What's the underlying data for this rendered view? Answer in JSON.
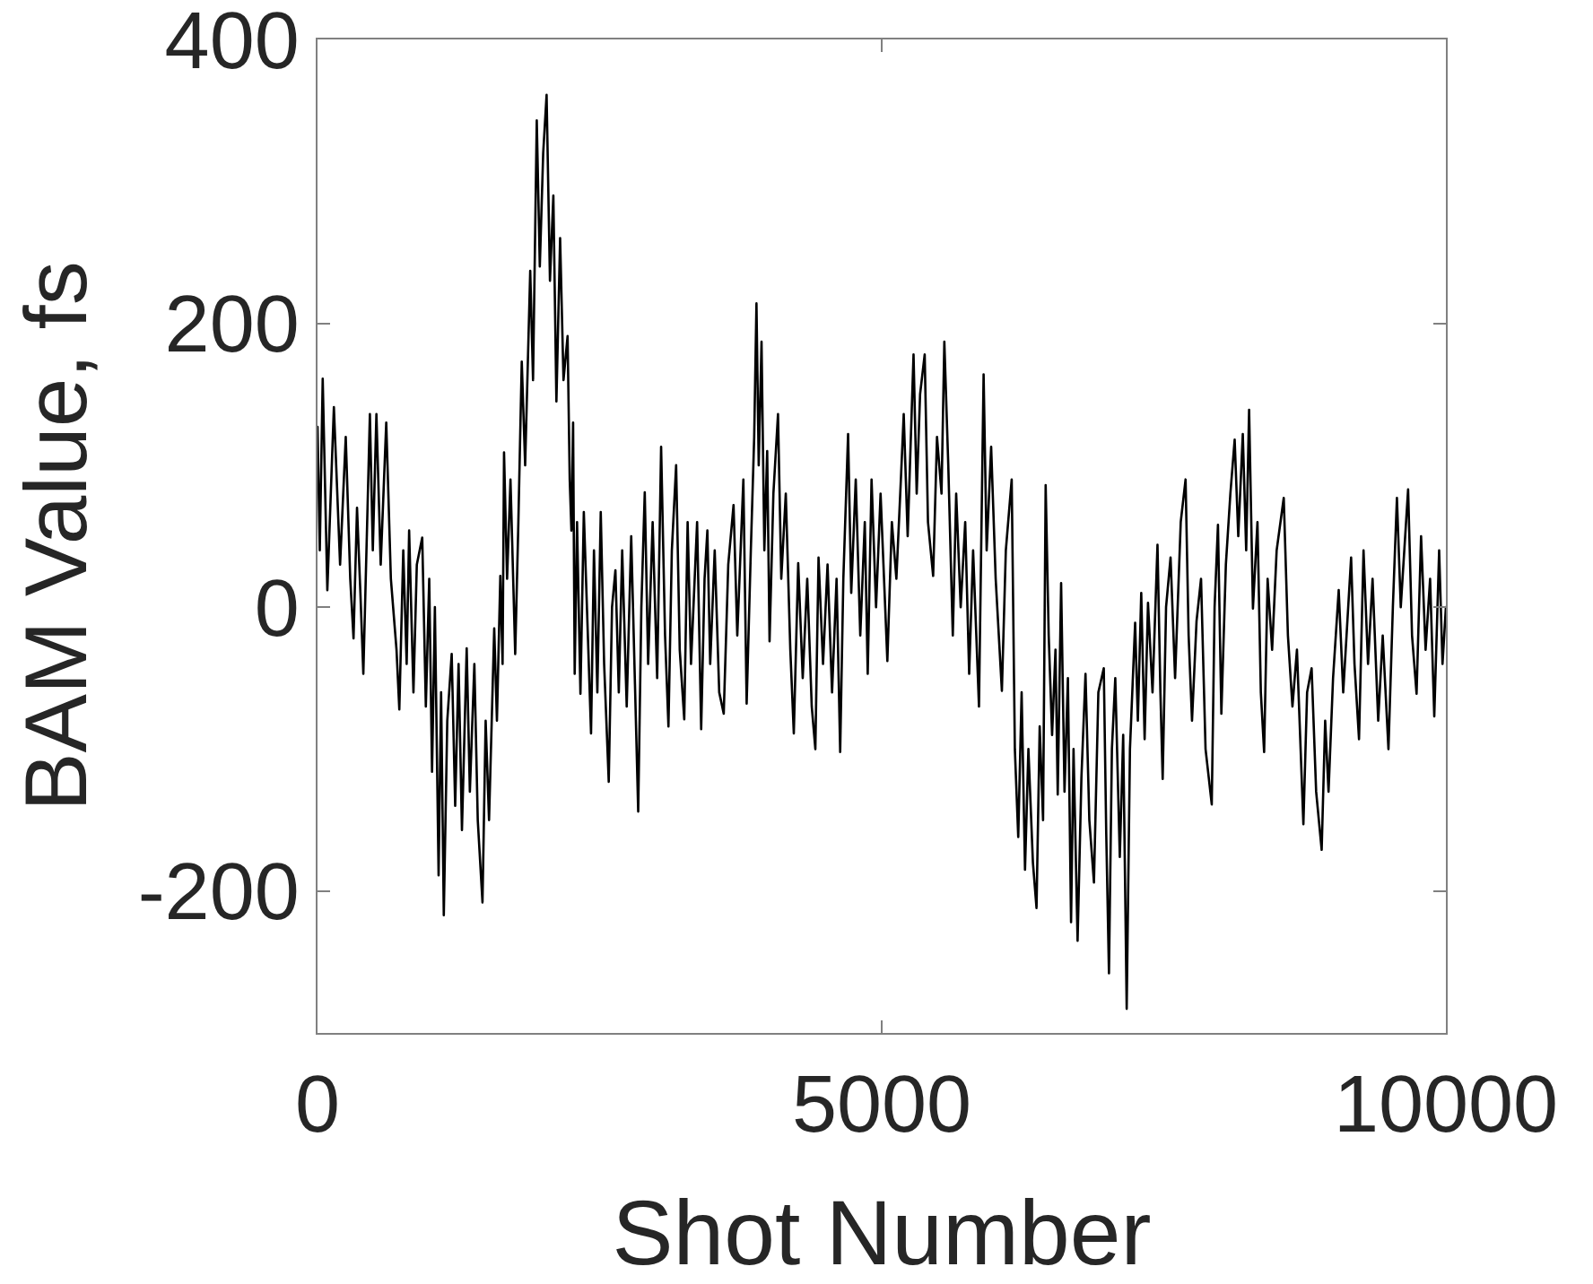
{
  "chart_data": {
    "type": "line",
    "xlabel": "Shot Number",
    "ylabel": "BAM Value, fs",
    "x": [
      0,
      20,
      46,
      87,
      145,
      200,
      250,
      290,
      319,
      350,
      380,
      406,
      440,
      464,
      490,
      522,
      560,
      609,
      650,
      700,
      725,
      760,
      790,
      812,
      850,
      880,
      928,
      960,
      990,
      1015,
      1040,
      1073,
      1095,
      1119,
      1150,
      1189,
      1220,
      1250,
      1280,
      1322,
      1350,
      1390,
      1420,
      1462,
      1490,
      1520,
      1566,
      1590,
      1620,
      1640,
      1653,
      1680,
      1710,
      1752,
      1780,
      1810,
      1840,
      1885,
      1910,
      1943,
      1970,
      2000,
      2030,
      2060,
      2090,
      2117,
      2150,
      2180,
      2216,
      2235,
      2250,
      2265,
      2279,
      2300,
      2330,
      2360,
      2400,
      2424,
      2450,
      2480,
      2510,
      2540,
      2581,
      2610,
      2640,
      2670,
      2700,
      2740,
      2780,
      2842,
      2870,
      2900,
      2930,
      2970,
      3010,
      3045,
      3080,
      3110,
      3140,
      3178,
      3210,
      3250,
      3280,
      3310,
      3364,
      3400,
      3430,
      3455,
      3480,
      3520,
      3560,
      3600,
      3640,
      3687,
      3720,
      3774,
      3803,
      3840,
      3870,
      3890,
      3910,
      3935,
      3960,
      3985,
      4006,
      4040,
      4081,
      4110,
      4150,
      4190,
      4221,
      4260,
      4300,
      4340,
      4380,
      4412,
      4440,
      4480,
      4520,
      4560,
      4600,
      4632,
      4660,
      4702,
      4730,
      4770,
      4810,
      4850,
      4876,
      4910,
      4950,
      4990,
      5050,
      5090,
      5130,
      5170,
      5195,
      5230,
      5282,
      5310,
      5340,
      5381,
      5410,
      5456,
      5490,
      5530,
      5555,
      5590,
      5630,
      5660,
      5700,
      5740,
      5775,
      5810,
      5862,
      5903,
      5930,
      5970,
      6010,
      6065,
      6100,
      6152,
      6180,
      6210,
      6240,
      6270,
      6300,
      6340,
      6372,
      6400,
      6430,
      6453,
      6480,
      6510,
      6540,
      6560,
      6590,
      6620,
      6650,
      6678,
      6700,
      6736,
      6770,
      6806,
      6840,
      6881,
      6920,
      6968,
      6990,
      7014,
      7040,
      7070,
      7110,
      7140,
      7171,
      7200,
      7246,
      7270,
      7300,
      7330,
      7360,
      7400,
      7444,
      7470,
      7490,
      7520,
      7560,
      7600,
      7650,
      7693,
      7720,
      7750,
      7790,
      7830,
      7870,
      7925,
      7950,
      7980,
      8010,
      8050,
      8090,
      8128,
      8160,
      8200,
      8230,
      8256,
      8290,
      8330,
      8360,
      8389,
      8420,
      8460,
      8500,
      8563,
      8600,
      8640,
      8680,
      8737,
      8770,
      8810,
      8850,
      8899,
      8930,
      8960,
      9000,
      9050,
      9090,
      9160,
      9190,
      9230,
      9270,
      9310,
      9350,
      9400,
      9440,
      9491,
      9530,
      9566,
      9600,
      9665,
      9700,
      9740,
      9780,
      9820,
      9860,
      9897,
      9940,
      9970,
      10000
    ],
    "series": [
      {
        "color": "#000000",
        "values": [
          127,
          40,
          161,
          12,
          141,
          30,
          120,
          20,
          -22,
          70,
          10,
          -47,
          60,
          136,
          40,
          136,
          30,
          130,
          20,
          -30,
          -72,
          40,
          -40,
          54,
          -60,
          30,
          49,
          -70,
          20,
          -116,
          0,
          -189,
          -60,
          -217,
          -80,
          -33,
          -140,
          -40,
          -157,
          -29,
          -130,
          -40,
          -150,
          -208,
          -80,
          -150,
          -15,
          -80,
          22,
          -40,
          109,
          20,
          90,
          -33,
          60,
          173,
          100,
          237,
          160,
          343,
          240,
          320,
          361,
          230,
          290,
          145,
          260,
          160,
          191,
          90,
          54,
          130,
          -47,
          60,
          -61,
          67,
          -30,
          -89,
          40,
          -60,
          67,
          -40,
          -123,
          0,
          26,
          -60,
          40,
          -70,
          50,
          -144,
          0,
          81,
          -40,
          60,
          -50,
          113,
          -20,
          -84,
          40,
          100,
          -30,
          -79,
          60,
          -40,
          60,
          -86,
          20,
          54,
          -40,
          40,
          -60,
          -75,
          30,
          72,
          -20,
          90,
          -68,
          40,
          120,
          214,
          100,
          187,
          40,
          110,
          -24,
          80,
          136,
          20,
          80,
          -30,
          -89,
          31,
          -50,
          20,
          -70,
          -100,
          35,
          -40,
          30,
          -60,
          20,
          -102,
          20,
          122,
          10,
          90,
          -20,
          60,
          -47,
          90,
          0,
          80,
          -38,
          60,
          20,
          90,
          136,
          50,
          178,
          80,
          150,
          178,
          60,
          22,
          120,
          80,
          187,
          100,
          -20,
          80,
          0,
          60,
          -47,
          40,
          -70,
          164,
          40,
          113,
          20,
          -59,
          40,
          90,
          -100,
          -162,
          -60,
          -185,
          -100,
          -180,
          -212,
          -84,
          -150,
          86,
          -20,
          -90,
          -30,
          -132,
          17,
          -130,
          -50,
          -222,
          -100,
          -235,
          -120,
          -47,
          -150,
          -194,
          -60,
          -43,
          -160,
          -258,
          -100,
          -50,
          -176,
          -90,
          -283,
          -100,
          -11,
          -80,
          10,
          -93,
          3,
          -60,
          44,
          -60,
          -121,
          0,
          35,
          -50,
          60,
          90,
          -20,
          -80,
          -10,
          20,
          -100,
          -139,
          0,
          58,
          -75,
          30,
          80,
          118,
          50,
          122,
          40,
          139,
          -1,
          60,
          -60,
          -102,
          20,
          -30,
          40,
          77,
          -20,
          -70,
          -30,
          -153,
          -60,
          -43,
          -130,
          -171,
          -80,
          -130,
          -50,
          12,
          -60,
          35,
          -40,
          -93,
          40,
          -40,
          20,
          -80,
          -20,
          -100,
          0,
          77,
          0,
          83,
          -20,
          -61,
          50,
          -30,
          20,
          -77,
          40,
          -40,
          0
        ]
      }
    ],
    "xlim": [
      0,
      10000
    ],
    "ylim": [
      -300,
      400
    ],
    "xticks": [
      0,
      5000,
      10000
    ],
    "yticks": [
      -200,
      0,
      200,
      400
    ]
  }
}
